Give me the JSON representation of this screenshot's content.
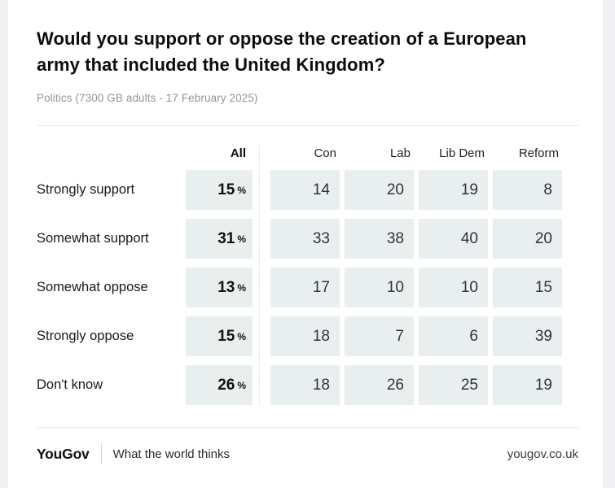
{
  "header": {
    "title_line1": "Would you support or oppose the creation of a European",
    "title_line2": "army that included the United Kingdom?",
    "subtitle": "Politics (7300 GB adults - 17 February 2025)"
  },
  "chart_data": {
    "type": "table",
    "title": "Would you support or oppose the creation of a European army that included the United Kingdom?",
    "subtitle": "Politics (7300 GB adults - 17 February 2025)",
    "unit": "%",
    "columns": [
      "All",
      "Con",
      "Lab",
      "Lib Dem",
      "Reform"
    ],
    "rows": [
      {
        "label": "Strongly support",
        "all": 15,
        "values": [
          14,
          20,
          19,
          8
        ]
      },
      {
        "label": "Somewhat support",
        "all": 31,
        "values": [
          33,
          38,
          40,
          20
        ]
      },
      {
        "label": "Somewhat oppose",
        "all": 13,
        "values": [
          17,
          10,
          10,
          15
        ]
      },
      {
        "label": "Strongly oppose",
        "all": 15,
        "values": [
          18,
          7,
          6,
          39
        ]
      },
      {
        "label": "Don't know",
        "all": 26,
        "values": [
          18,
          26,
          25,
          19
        ]
      }
    ],
    "colors": {
      "cell_bg": "#e9efef",
      "accent_text": "#111111"
    }
  },
  "footer": {
    "logo": "YouGov",
    "tagline": "What the world thinks",
    "url": "yougov.co.uk"
  }
}
